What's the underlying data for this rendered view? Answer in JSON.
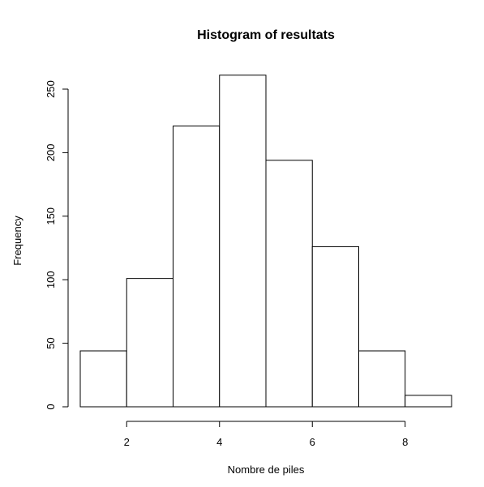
{
  "chart_data": {
    "type": "bar",
    "title": "Histogram of resultats",
    "xlabel": "Nombre de piles",
    "ylabel": "Frequency",
    "bins": [
      [
        1,
        2
      ],
      [
        2,
        3
      ],
      [
        3,
        4
      ],
      [
        4,
        5
      ],
      [
        5,
        6
      ],
      [
        6,
        7
      ],
      [
        7,
        8
      ],
      [
        8,
        9
      ]
    ],
    "values": [
      44,
      101,
      221,
      261,
      194,
      126,
      44,
      9
    ],
    "xlim": [
      1,
      9
    ],
    "ylim": [
      0,
      261
    ],
    "xticks": [
      2,
      4,
      6,
      8
    ],
    "yticks": [
      0,
      50,
      100,
      150,
      200,
      250
    ],
    "grid": false,
    "legend": "none",
    "colors": {
      "bar_fill": "#ffffff",
      "bar_stroke": "#000000",
      "background": "#ffffff"
    }
  }
}
